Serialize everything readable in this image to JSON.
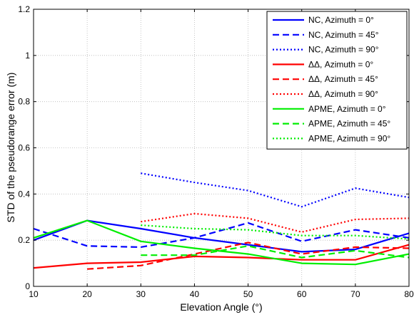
{
  "chart_data": {
    "type": "line",
    "xlabel": "Elevation Angle (°)",
    "ylabel": "STD of the pseudorange error (m)",
    "xlim": [
      10,
      80
    ],
    "ylim": [
      0,
      1.2
    ],
    "xticks": [
      "10",
      "20",
      "30",
      "40",
      "50",
      "60",
      "70",
      "80"
    ],
    "yticks": [
      "0",
      "0.2",
      "0.4",
      "0.6",
      "0.8",
      "1",
      "1.2"
    ],
    "grid": true,
    "legend_position": "top-right",
    "series": [
      {
        "name": "NC, Azimuth = 0°",
        "color": "#0000ff",
        "dash": "solid",
        "x": [
          10,
          20,
          30,
          40,
          50,
          60,
          70,
          80
        ],
        "y": [
          0.2,
          0.285,
          0.25,
          0.21,
          0.18,
          0.15,
          0.16,
          0.23
        ]
      },
      {
        "name": "NC, Azimuth = 45°",
        "color": "#0000ff",
        "dash": "dashed",
        "x": [
          10,
          20,
          30,
          40,
          50,
          60,
          70,
          80
        ],
        "y": [
          0.25,
          0.175,
          0.17,
          0.21,
          0.275,
          0.195,
          0.245,
          0.21
        ]
      },
      {
        "name": "NC, Azimuth = 90°",
        "color": "#0000ff",
        "dash": "dotted",
        "x": [
          30,
          40,
          50,
          60,
          70,
          80
        ],
        "y": [
          0.49,
          0.45,
          0.415,
          0.345,
          0.425,
          0.385
        ]
      },
      {
        "name": "ΔΔ, Azimuth = 0°",
        "color": "#ff0000",
        "dash": "solid",
        "x": [
          10,
          20,
          30,
          40,
          50,
          60,
          70,
          80
        ],
        "y": [
          0.08,
          0.1,
          0.105,
          0.13,
          0.125,
          0.115,
          0.115,
          0.18
        ]
      },
      {
        "name": "ΔΔ, Azimuth = 45°",
        "color": "#ff0000",
        "dash": "dashed",
        "x": [
          20,
          30,
          40,
          50,
          60,
          70,
          80
        ],
        "y": [
          0.075,
          0.09,
          0.14,
          0.19,
          0.14,
          0.17,
          0.165
        ]
      },
      {
        "name": "ΔΔ, Azimuth = 90°",
        "color": "#ff0000",
        "dash": "dotted",
        "x": [
          30,
          40,
          50,
          60,
          70,
          80
        ],
        "y": [
          0.28,
          0.315,
          0.295,
          0.235,
          0.29,
          0.295
        ]
      },
      {
        "name": "APME, Azimuth = 0°",
        "color": "#00ee00",
        "dash": "solid",
        "x": [
          10,
          20,
          30,
          40,
          50,
          60,
          70,
          80
        ],
        "y": [
          0.21,
          0.285,
          0.195,
          0.165,
          0.14,
          0.1,
          0.095,
          0.14
        ]
      },
      {
        "name": "APME, Azimuth = 45°",
        "color": "#00ee00",
        "dash": "dashed",
        "x": [
          30,
          40,
          50,
          60,
          70,
          80
        ],
        "y": [
          0.135,
          0.135,
          0.175,
          0.125,
          0.155,
          0.125
        ]
      },
      {
        "name": "APME, Azimuth = 90°",
        "color": "#00ee00",
        "dash": "dotted",
        "x": [
          30,
          40,
          50,
          60,
          70,
          80
        ],
        "y": [
          0.265,
          0.25,
          0.245,
          0.22,
          0.22,
          0.205
        ]
      }
    ]
  }
}
